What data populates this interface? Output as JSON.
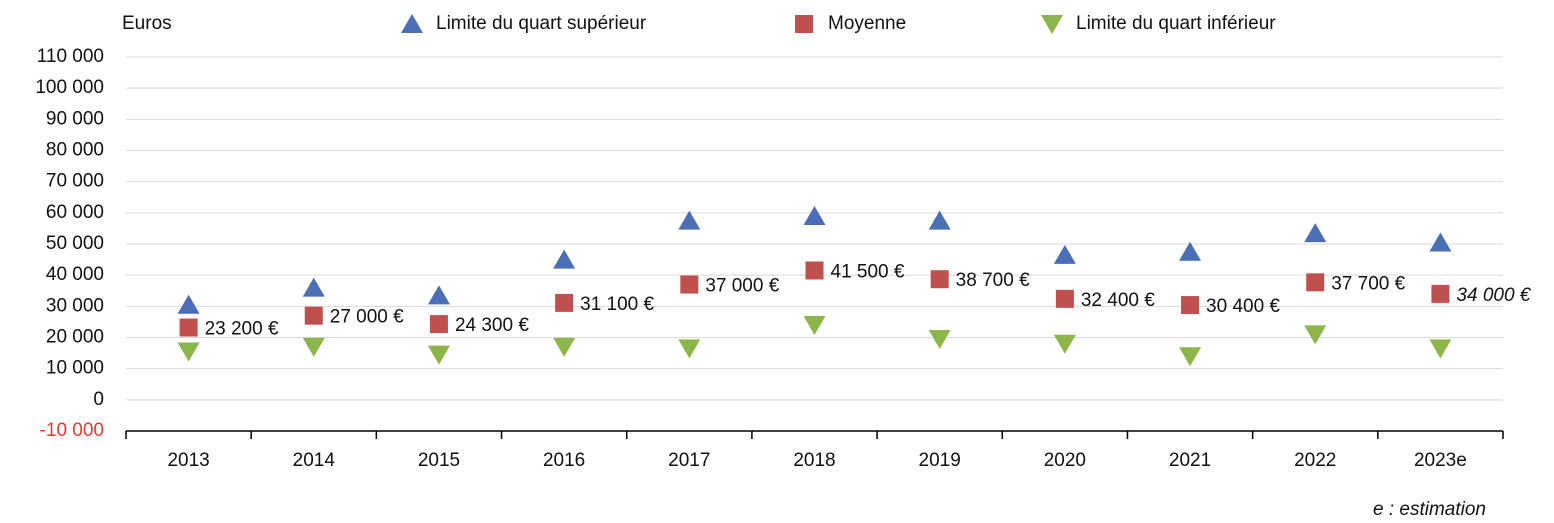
{
  "chart_data": {
    "type": "scatter",
    "y_label": "Euros",
    "note": "e : estimation",
    "categories": [
      "2013",
      "2014",
      "2015",
      "2016",
      "2017",
      "2018",
      "2019",
      "2020",
      "2021",
      "2022",
      "2023e"
    ],
    "series": [
      {
        "name": "Limite du quart supérieur",
        "color": "#4a6fb5",
        "marker": "triangle-up",
        "values": [
          30500,
          36000,
          33500,
          45000,
          57500,
          59000,
          57500,
          46500,
          47500,
          53500,
          50500
        ]
      },
      {
        "name": "Moyenne",
        "color": "#c0504d",
        "marker": "square",
        "values": [
          23200,
          27000,
          24300,
          31100,
          37000,
          41500,
          38700,
          32400,
          30400,
          37700,
          34000
        ],
        "value_labels": [
          "23 200 €",
          "27 000 €",
          "24 300 €",
          "31 100 €",
          "37 000 €",
          "41 500 €",
          "38 700 €",
          "32 400 €",
          "30 400 €",
          "37 700 €",
          "34 000 €"
        ]
      },
      {
        "name": "Limite du quart inférieur",
        "color": "#8db64a",
        "marker": "triangle-down",
        "values": [
          15500,
          17000,
          14500,
          17000,
          16500,
          24000,
          19500,
          18000,
          14000,
          21000,
          16500
        ]
      }
    ],
    "ylim": [
      -10000,
      110000
    ],
    "yticks": [
      {
        "value": -10000,
        "label": "-10 000"
      },
      0,
      {
        "value": 10000,
        "label": "10 000"
      },
      {
        "value": 20000,
        "label": "20 000"
      },
      {
        "value": 30000,
        "label": "30 000"
      },
      {
        "value": 40000,
        "label": "40 000"
      },
      {
        "value": 50000,
        "label": "50 000"
      },
      {
        "value": 60000,
        "label": "60 000"
      },
      {
        "value": 70000,
        "label": "70 000"
      },
      {
        "value": 80000,
        "label": "80 000"
      },
      {
        "value": 90000,
        "label": "90 000"
      },
      {
        "value": 100000,
        "label": "100 000"
      },
      {
        "value": 110000,
        "label": "110 000"
      }
    ],
    "negative_tick_color": "#e8392b",
    "grid": true
  }
}
